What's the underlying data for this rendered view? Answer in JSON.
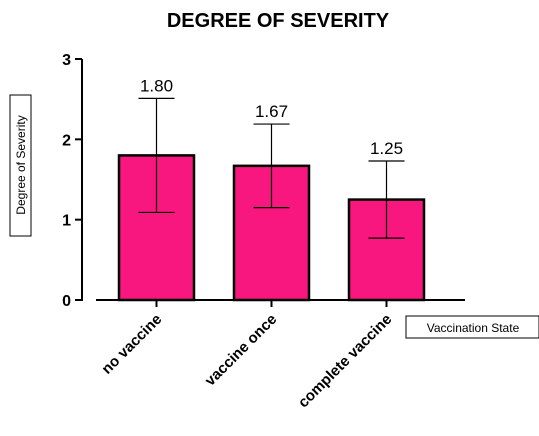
{
  "chart_data": {
    "type": "bar",
    "title": "DEGREE OF SEVERITY",
    "xlabel": "Vaccination State",
    "ylabel": "Degree of Severity",
    "categories": [
      "no vaccine",
      "vaccine once",
      "complete vaccine"
    ],
    "values": [
      1.8,
      1.67,
      1.25
    ],
    "value_labels": [
      "1.80",
      "1.67",
      "1.25"
    ],
    "error_bars": [
      {
        "low": 1.09,
        "high": 2.51
      },
      {
        "low": 1.15,
        "high": 2.19
      },
      {
        "low": 0.77,
        "high": 1.73
      }
    ],
    "ylim": [
      0,
      3
    ],
    "yticks": [
      "0",
      "1",
      "2",
      "3"
    ],
    "grid": false,
    "legend": "none",
    "colors": {
      "bar": "#F7177E",
      "outline": "#000000"
    }
  }
}
